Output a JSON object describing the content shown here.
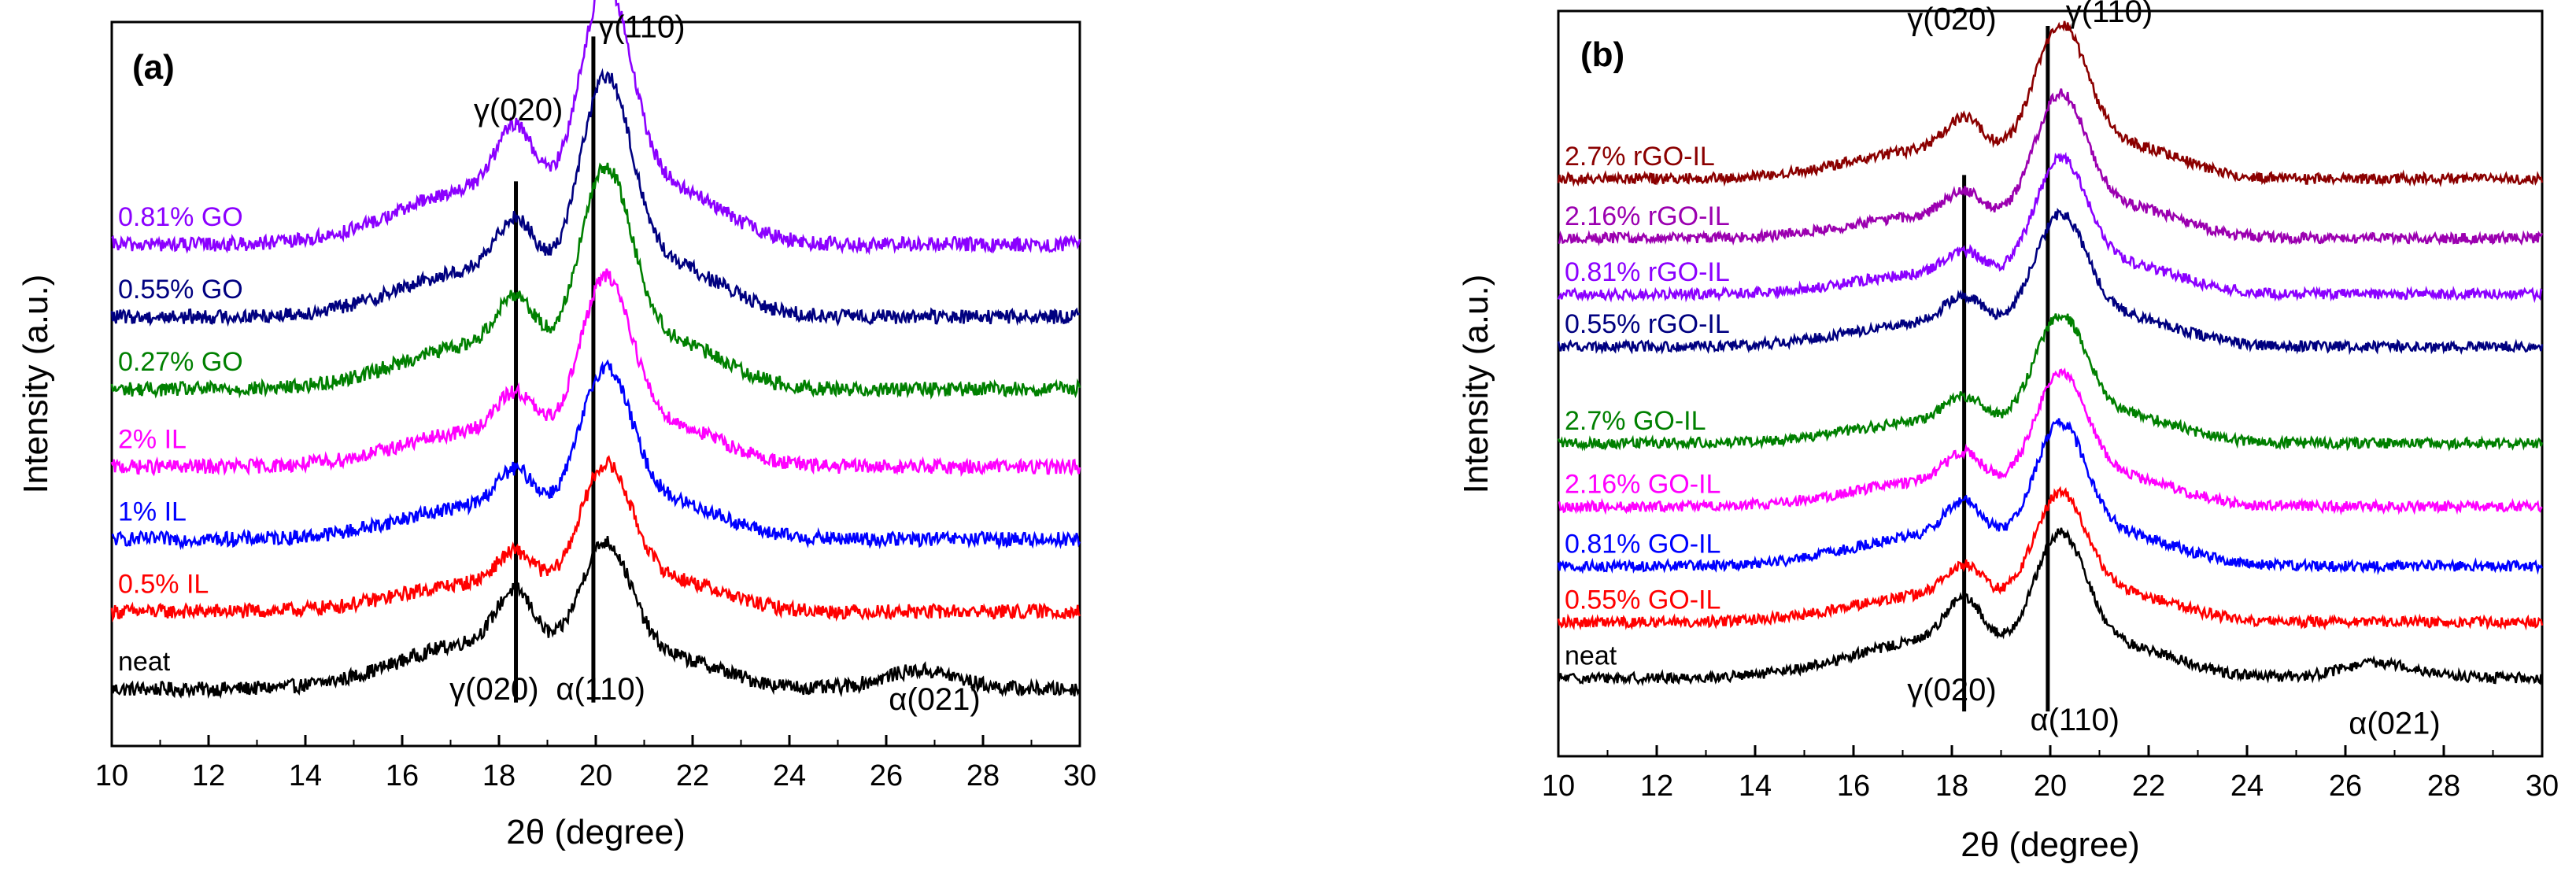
{
  "figure": {
    "panels": [
      "(a)",
      "(b)"
    ]
  },
  "chart_data": [
    {
      "type": "line",
      "panel_label": "(a)",
      "title": "",
      "xlabel": "2θ (degree)",
      "ylabel": "Intensity (a.u.)",
      "xlim": [
        10,
        30
      ],
      "ylim": [
        0,
        7
      ],
      "xticks": [
        10,
        12,
        14,
        16,
        18,
        20,
        22,
        24,
        26,
        28,
        30
      ],
      "x_tick_labels": [
        "10",
        "12",
        "14",
        "16",
        "18",
        "20",
        "22",
        "24",
        "26",
        "28",
        "30"
      ],
      "grid": false,
      "reference_lines": [
        {
          "x": 18.35,
          "label": "γ(020)"
        },
        {
          "x": 19.95,
          "label": "γ(110)"
        }
      ],
      "annotations": [
        {
          "text": "γ(020)",
          "x": 18.4,
          "y": 6.05
        },
        {
          "text": "γ(110)",
          "x": 20.95,
          "y": 6.85
        },
        {
          "text": "γ(020)",
          "x": 17.9,
          "y": 0.45
        },
        {
          "text": "α(110)",
          "x": 20.1,
          "y": 0.45
        },
        {
          "text": "α(021)",
          "x": 27.0,
          "y": 0.35
        }
      ],
      "series": [
        {
          "name": "neat",
          "color": "#000000",
          "baseline": 0.55,
          "peak_020": 1.0,
          "peak_110": 1.15,
          "bump_021": 0.18
        },
        {
          "name": "0.5% IL",
          "color": "#ff0000",
          "baseline": 1.3,
          "peak_020": 0.6,
          "peak_110": 1.2,
          "bump_021": 0.0
        },
        {
          "name": "1% IL",
          "color": "#0000ff",
          "baseline": 2.0,
          "peak_020": 0.7,
          "peak_110": 1.4,
          "bump_021": 0.0
        },
        {
          "name": "2% IL",
          "color": "#ff00ff",
          "baseline": 2.7,
          "peak_020": 0.75,
          "peak_110": 1.55,
          "bump_021": 0.0
        },
        {
          "name": "0.27% GO",
          "color": "#008000",
          "baseline": 3.45,
          "peak_020": 0.95,
          "peak_110": 1.8,
          "bump_021": 0.0
        },
        {
          "name": "0.55% GO",
          "color": "#000080",
          "baseline": 4.15,
          "peak_020": 1.0,
          "peak_110": 1.95,
          "bump_021": 0.0
        },
        {
          "name": "0.81% GO",
          "color": "#8b00ff",
          "baseline": 4.85,
          "peak_020": 1.2,
          "peak_110": 2.1,
          "bump_021": 0.0
        }
      ]
    },
    {
      "type": "line",
      "panel_label": "(b)",
      "title": "",
      "xlabel": "2θ (degree)",
      "ylabel": "Intensity (a.u.)",
      "xlim": [
        10,
        30
      ],
      "ylim": [
        0,
        10
      ],
      "xticks": [
        10,
        12,
        14,
        16,
        18,
        20,
        22,
        24,
        26,
        28,
        30
      ],
      "x_tick_labels": [
        "10",
        "12",
        "14",
        "16",
        "18",
        "20",
        "22",
        "24",
        "26",
        "28",
        "30"
      ],
      "grid": false,
      "reference_lines": [
        {
          "x": 18.25,
          "label": "γ(020)"
        },
        {
          "x": 19.95,
          "label": "γ(110)"
        }
      ],
      "annotations": [
        {
          "text": "γ(020)",
          "x": 18.0,
          "y": 9.75
        },
        {
          "text": "γ(110)",
          "x": 21.2,
          "y": 9.85
        },
        {
          "text": "γ(020)",
          "x": 18.0,
          "y": 0.75
        },
        {
          "text": "α(110)",
          "x": 20.5,
          "y": 0.35
        },
        {
          "text": "α(021)",
          "x": 27.0,
          "y": 0.3
        }
      ],
      "series": [
        {
          "name": "neat",
          "color": "#000000",
          "baseline": 1.05,
          "peak_020": 1.1,
          "peak_110": 1.6,
          "bump_021": 0.2
        },
        {
          "name": "0.55% GO-IL",
          "color": "#ff0000",
          "baseline": 1.8,
          "peak_020": 0.8,
          "peak_110": 1.45,
          "bump_021": 0.0
        },
        {
          "name": "0.81% GO-IL",
          "color": "#0000ff",
          "baseline": 2.55,
          "peak_020": 0.9,
          "peak_110": 1.6,
          "bump_021": 0.0
        },
        {
          "name": "2.16% GO-IL",
          "color": "#ff00ff",
          "baseline": 3.35,
          "peak_020": 0.75,
          "peak_110": 1.5,
          "bump_021": 0.0
        },
        {
          "name": "2.7% GO-IL",
          "color": "#008000",
          "baseline": 4.2,
          "peak_020": 0.65,
          "peak_110": 1.45,
          "bump_021": 0.0
        },
        {
          "name": "0.55% rGO-IL",
          "color": "#000080",
          "baseline": 5.5,
          "peak_020": 0.7,
          "peak_110": 1.5,
          "bump_021": 0.0
        },
        {
          "name": "0.81% rGO-IL",
          "color": "#8b00ff",
          "baseline": 6.2,
          "peak_020": 0.6,
          "peak_110": 1.55,
          "bump_021": 0.0
        },
        {
          "name": "2.16% rGO-IL",
          "color": "#9b00b0",
          "baseline": 6.95,
          "peak_020": 0.65,
          "peak_110": 1.65,
          "bump_021": 0.0
        },
        {
          "name": "2.7% rGO-IL",
          "color": "#8b0000",
          "baseline": 7.75,
          "peak_020": 0.85,
          "peak_110": 1.75,
          "bump_021": 0.0
        }
      ]
    }
  ]
}
